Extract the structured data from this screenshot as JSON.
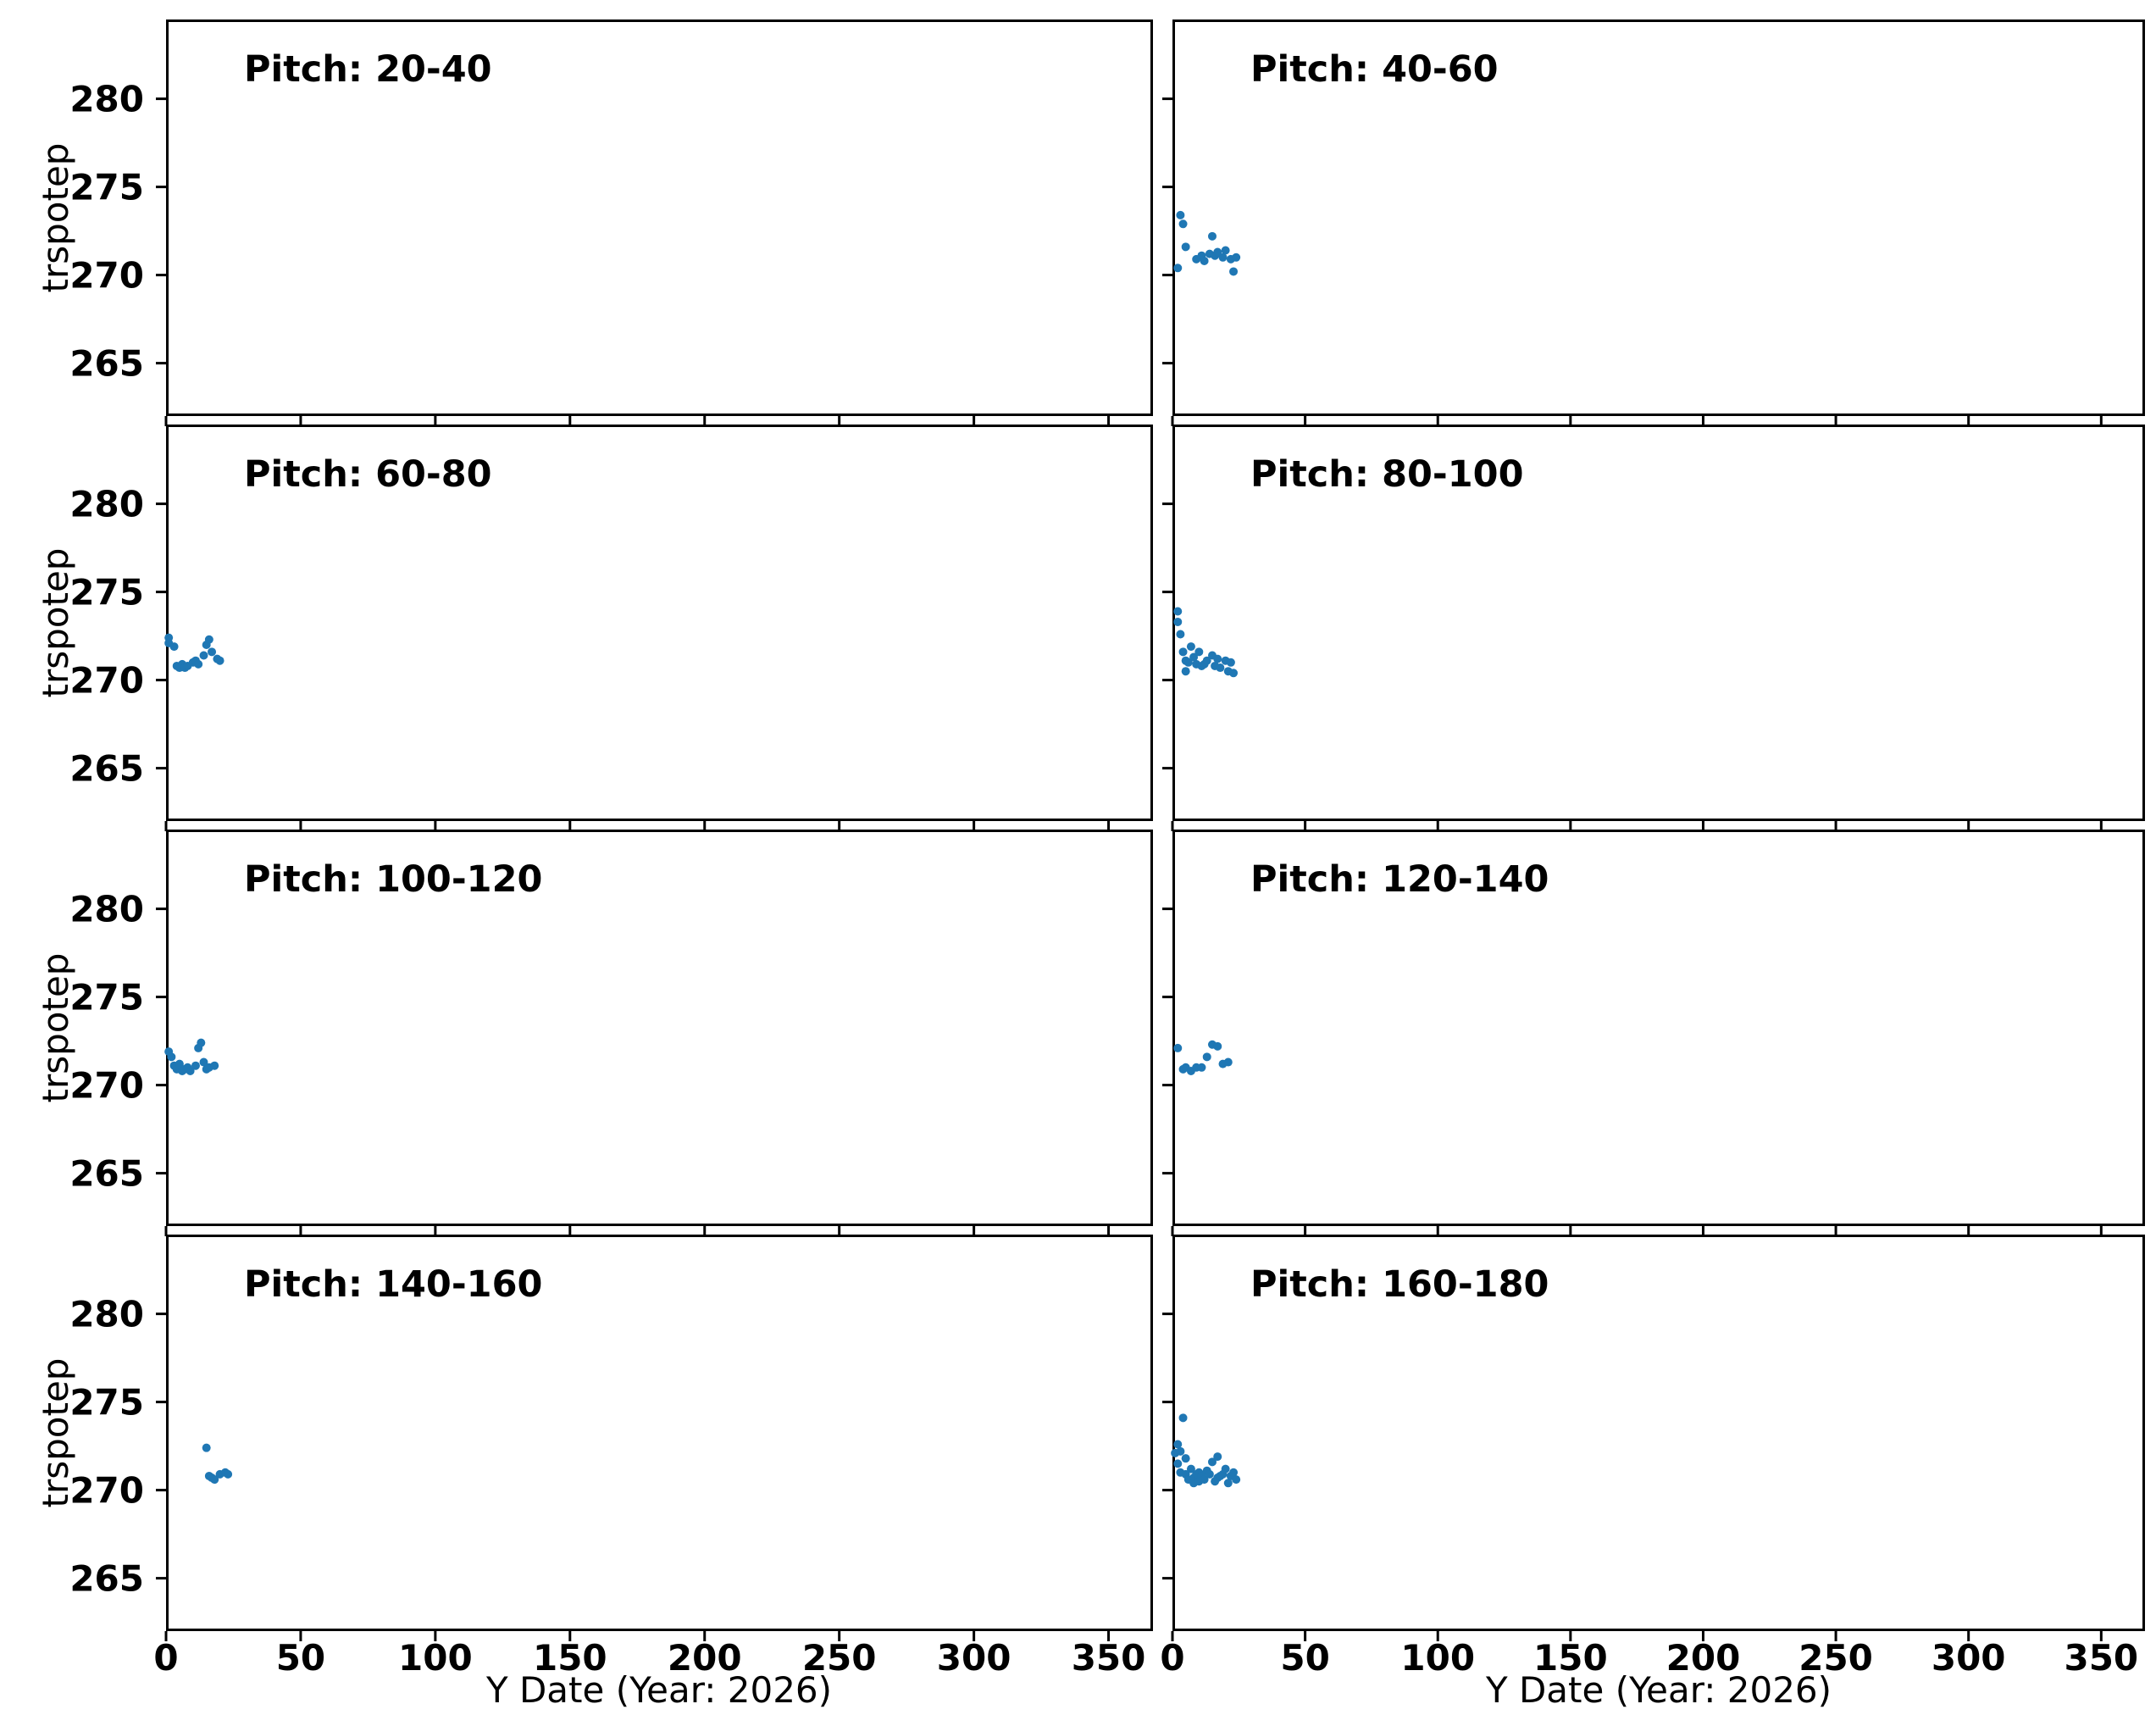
{
  "chart_data": {
    "type": "scatter",
    "layout": "4x2 small multiples, shared x and y axes",
    "xlabel": "Y Date (Year: 2026)",
    "ylabel": "trspotep",
    "xlim": [
      0,
      366.5
    ],
    "ylim": [
      262.0,
      284.5
    ],
    "xticks": [
      0,
      50,
      100,
      150,
      200,
      250,
      300,
      350
    ],
    "yticks": [
      265,
      270,
      275,
      280
    ],
    "point_color": "#1f77b4",
    "panels": [
      {
        "title": "Pitch: 20-40",
        "points": []
      },
      {
        "title": "Pitch: 40-60",
        "points": [
          [
            2,
            270.4
          ],
          [
            3,
            273.4
          ],
          [
            4,
            272.9
          ],
          [
            5,
            271.6
          ],
          [
            9,
            270.9
          ],
          [
            11,
            271.1
          ],
          [
            12,
            270.8
          ],
          [
            14,
            271.2
          ],
          [
            15,
            272.2
          ],
          [
            16,
            271.1
          ],
          [
            17,
            271.3
          ],
          [
            19,
            271.0
          ],
          [
            20,
            271.4
          ],
          [
            22,
            270.9
          ],
          [
            23,
            270.2
          ],
          [
            24,
            271.0
          ]
        ]
      },
      {
        "title": "Pitch: 60-80",
        "points": [
          [
            1,
            272.4
          ],
          [
            1,
            272.1
          ],
          [
            3,
            271.9
          ],
          [
            4,
            270.8
          ],
          [
            5,
            270.7
          ],
          [
            6,
            270.9
          ],
          [
            7,
            270.7
          ],
          [
            8,
            270.8
          ],
          [
            10,
            271.0
          ],
          [
            11,
            271.1
          ],
          [
            12,
            270.9
          ],
          [
            14,
            271.4
          ],
          [
            15,
            272.0
          ],
          [
            16,
            272.3
          ],
          [
            17,
            271.6
          ],
          [
            19,
            271.2
          ],
          [
            20,
            271.1
          ]
        ]
      },
      {
        "title": "Pitch: 80-100",
        "points": [
          [
            2,
            273.9
          ],
          [
            2,
            273.3
          ],
          [
            3,
            272.6
          ],
          [
            4,
            271.6
          ],
          [
            5,
            271.1
          ],
          [
            5,
            270.5
          ],
          [
            6,
            271.0
          ],
          [
            7,
            271.9
          ],
          [
            8,
            271.3
          ],
          [
            9,
            270.9
          ],
          [
            10,
            271.6
          ],
          [
            11,
            270.8
          ],
          [
            12,
            270.9
          ],
          [
            13,
            271.1
          ],
          [
            15,
            271.4
          ],
          [
            16,
            270.8
          ],
          [
            17,
            271.2
          ],
          [
            18,
            270.7
          ],
          [
            20,
            271.1
          ],
          [
            21,
            270.5
          ],
          [
            22,
            271.0
          ],
          [
            23,
            270.4
          ]
        ]
      },
      {
        "title": "Pitch: 100-120",
        "points": [
          [
            1,
            271.9
          ],
          [
            2,
            271.6
          ],
          [
            3,
            271.1
          ],
          [
            4,
            270.9
          ],
          [
            5,
            271.2
          ],
          [
            6,
            270.8
          ],
          [
            7,
            270.9
          ],
          [
            8,
            271.0
          ],
          [
            9,
            270.8
          ],
          [
            11,
            271.1
          ],
          [
            12,
            272.1
          ],
          [
            13,
            272.4
          ],
          [
            14,
            271.3
          ],
          [
            15,
            270.9
          ],
          [
            16,
            271.0
          ],
          [
            18,
            271.1
          ]
        ]
      },
      {
        "title": "Pitch: 120-140",
        "points": [
          [
            2,
            272.1
          ],
          [
            4,
            270.9
          ],
          [
            5,
            271.0
          ],
          [
            7,
            270.8
          ],
          [
            9,
            271.0
          ],
          [
            11,
            271.0
          ],
          [
            13,
            271.6
          ],
          [
            15,
            272.3
          ],
          [
            17,
            272.2
          ],
          [
            19,
            271.2
          ],
          [
            21,
            271.3
          ]
        ]
      },
      {
        "title": "Pitch: 140-160",
        "points": [
          [
            15,
            272.4
          ],
          [
            16,
            270.8
          ],
          [
            17,
            270.7
          ],
          [
            18,
            270.6
          ],
          [
            20,
            270.9
          ],
          [
            22,
            271.0
          ],
          [
            23,
            270.9
          ]
        ]
      },
      {
        "title": "Pitch: 160-180",
        "points": [
          [
            1,
            272.1
          ],
          [
            2,
            272.6
          ],
          [
            2,
            271.5
          ],
          [
            3,
            271.0
          ],
          [
            3,
            272.2
          ],
          [
            4,
            274.1
          ],
          [
            5,
            271.8
          ],
          [
            5,
            270.9
          ],
          [
            6,
            270.6
          ],
          [
            7,
            271.2
          ],
          [
            8,
            270.7
          ],
          [
            8,
            270.4
          ],
          [
            9,
            270.9
          ],
          [
            10,
            271.0
          ],
          [
            10,
            270.5
          ],
          [
            11,
            270.8
          ],
          [
            12,
            270.6
          ],
          [
            13,
            271.1
          ],
          [
            14,
            270.9
          ],
          [
            15,
            271.6
          ],
          [
            16,
            270.5
          ],
          [
            17,
            271.9
          ],
          [
            17,
            270.7
          ],
          [
            18,
            270.8
          ],
          [
            19,
            270.9
          ],
          [
            20,
            271.2
          ],
          [
            21,
            270.4
          ],
          [
            22,
            270.8
          ],
          [
            23,
            271.0
          ],
          [
            24,
            270.6
          ]
        ]
      }
    ]
  }
}
